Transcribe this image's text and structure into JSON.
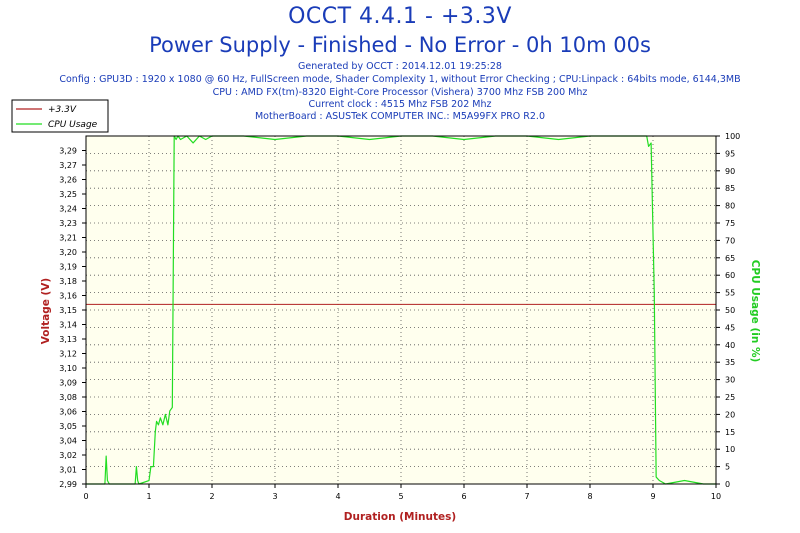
{
  "header": {
    "title": "OCCT 4.4.1 - +3.3V",
    "subtitle": "Power Supply - Finished - No Error - 0h 10m 00s",
    "info_lines": [
      "Generated by OCCT : 2014.12.01 19:25:28",
      "Config : GPU3D : 1920 x 1080 @ 60 Hz, FullScreen mode, Shader Complexity 1, without Error Checking ; CPU:Linpack : 64bits mode, 6144,3MB",
      "CPU : AMD FX(tm)-8320 Eight-Core Processor (Vishera) 3700 Mhz FSB 200 Mhz",
      "Current clock : 4515 Mhz FSB 202 Mhz",
      "MotherBoard : ASUSTeK COMPUTER INC.: M5A99FX PRO R2.0"
    ]
  },
  "colors": {
    "voltage": "#b02020",
    "cpu": "#22dd22",
    "plot_bg": "#ffffee",
    "grid": "#555555",
    "title": "#1a3cb8",
    "xlabel": "#b02020",
    "ylabel_left": "#b02020",
    "ylabel_right": "#22cc22"
  },
  "chart_data": {
    "type": "line",
    "xlabel": "Duration (Minutes)",
    "ylabel": "Voltage (V)",
    "ylabel_right": "CPU Usage (in %)",
    "xlim": [
      0,
      10
    ],
    "ylim": [
      2.99,
      3.3
    ],
    "ylim_right": [
      0,
      100
    ],
    "x_ticks": [
      0,
      1,
      2,
      3,
      4,
      5,
      6,
      7,
      8,
      9,
      10
    ],
    "y_ticks": [
      "2,99",
      "3,01",
      "3,02",
      "3,04",
      "3,05",
      "3,06",
      "3,08",
      "3,09",
      "3,10",
      "3,12",
      "3,13",
      "3,14",
      "3,15",
      "3,16",
      "3,18",
      "3,19",
      "3,20",
      "3,21",
      "3,23",
      "3,24",
      "3,25",
      "3,26",
      "3,27",
      "3,29"
    ],
    "y_right_ticks": [
      0,
      5,
      10,
      15,
      20,
      25,
      30,
      35,
      40,
      45,
      50,
      55,
      60,
      65,
      70,
      75,
      80,
      85,
      90,
      95,
      100
    ],
    "grid": true,
    "legend_position": "top-left",
    "series": [
      {
        "name": "+3.3V",
        "axis": "left",
        "x": [
          0,
          10
        ],
        "y": [
          3.15,
          3.15
        ]
      },
      {
        "name": "CPU Usage",
        "axis": "right",
        "x": [
          0,
          0.3,
          0.32,
          0.34,
          0.37,
          0.6,
          0.78,
          0.8,
          0.82,
          0.84,
          1.0,
          1.03,
          1.07,
          1.1,
          1.12,
          1.15,
          1.18,
          1.22,
          1.26,
          1.3,
          1.33,
          1.37,
          1.4,
          1.43,
          1.46,
          1.5,
          1.6,
          1.7,
          1.8,
          1.9,
          2.0,
          2.5,
          3.0,
          3.5,
          4.0,
          4.5,
          5.0,
          5.5,
          6.0,
          6.5,
          7.0,
          7.5,
          8.0,
          8.5,
          8.9,
          8.93,
          8.97,
          9.02,
          9.05,
          9.1,
          9.2,
          9.5,
          9.8,
          10
        ],
        "y": [
          0,
          0,
          8,
          1,
          0,
          0,
          0,
          5,
          1,
          0,
          1,
          5,
          5,
          15,
          18,
          17,
          19,
          17,
          20,
          17,
          21,
          22,
          100,
          99,
          100,
          99,
          100,
          98,
          100,
          99,
          100,
          100,
          99,
          100,
          100,
          99,
          100,
          100,
          99,
          100,
          100,
          99,
          100,
          100,
          100,
          97,
          98,
          55,
          2,
          1,
          0,
          1,
          0,
          0
        ]
      }
    ]
  }
}
